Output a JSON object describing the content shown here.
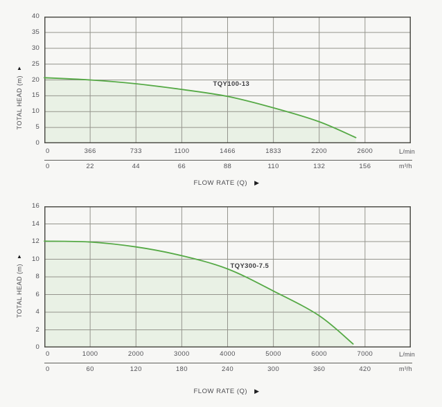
{
  "page": {
    "background": "#f7f7f5"
  },
  "icons": {
    "y_axis_arrow": "▲",
    "x_axis_arrow": "▶"
  },
  "chart_data": [
    {
      "type": "area",
      "series_label": "TQY100-13",
      "ylabel": "TOTAL HEAD (m)",
      "xlabel": "FLOW RATE (Q)",
      "ylim": [
        0,
        40
      ],
      "y_ticks": [
        40,
        35,
        30,
        25,
        20,
        15,
        10,
        5,
        0
      ],
      "x_primary": {
        "unit": "L/min",
        "ticks": [
          0,
          366,
          733,
          1100,
          1466,
          1833,
          2200,
          2600
        ]
      },
      "x_secondary": {
        "unit": "m³/h",
        "ticks": [
          0,
          22,
          44,
          66,
          88,
          110,
          132,
          156
        ]
      },
      "grid": true,
      "legend_position": "inline-label",
      "points_q_lmin_head_m": [
        [
          0,
          20.7
        ],
        [
          366,
          20.0
        ],
        [
          733,
          18.8
        ],
        [
          1100,
          17.0
        ],
        [
          1466,
          14.8
        ],
        [
          1833,
          11.2
        ],
        [
          2200,
          6.8
        ],
        [
          2520,
          1.8
        ]
      ],
      "label_anchor": {
        "q": 1350,
        "h": 17.7
      },
      "colors": {
        "line": "#55a945",
        "fill": "#e9f1e5",
        "grid": "#94948c",
        "border": "#4f4f49"
      }
    },
    {
      "type": "area",
      "series_label": "TQY300-7.5",
      "ylabel": "TOTAL HEAD (m)",
      "xlabel": "FLOW RATE (Q)",
      "ylim": [
        0,
        16
      ],
      "y_ticks": [
        16,
        14,
        12,
        10,
        8,
        6,
        4,
        2,
        0
      ],
      "x_primary": {
        "unit": "L/min",
        "ticks": [
          0,
          1000,
          2000,
          3000,
          4000,
          5000,
          6000,
          7000
        ]
      },
      "x_secondary": {
        "unit": "m³/h",
        "ticks": [
          0,
          60,
          120,
          180,
          240,
          300,
          360,
          420
        ]
      },
      "grid": true,
      "legend_position": "inline-label",
      "points_q_lmin_head_m": [
        [
          0,
          12.05
        ],
        [
          1000,
          11.95
        ],
        [
          2000,
          11.4
        ],
        [
          3000,
          10.4
        ],
        [
          4000,
          8.9
        ],
        [
          5000,
          6.4
        ],
        [
          6000,
          3.6
        ],
        [
          6740,
          0.4
        ]
      ],
      "label_anchor": {
        "q": 4060,
        "h": 8.9
      },
      "colors": {
        "line": "#55a945",
        "fill": "#e9f1e5",
        "grid": "#94948c",
        "border": "#4f4f49"
      }
    }
  ]
}
